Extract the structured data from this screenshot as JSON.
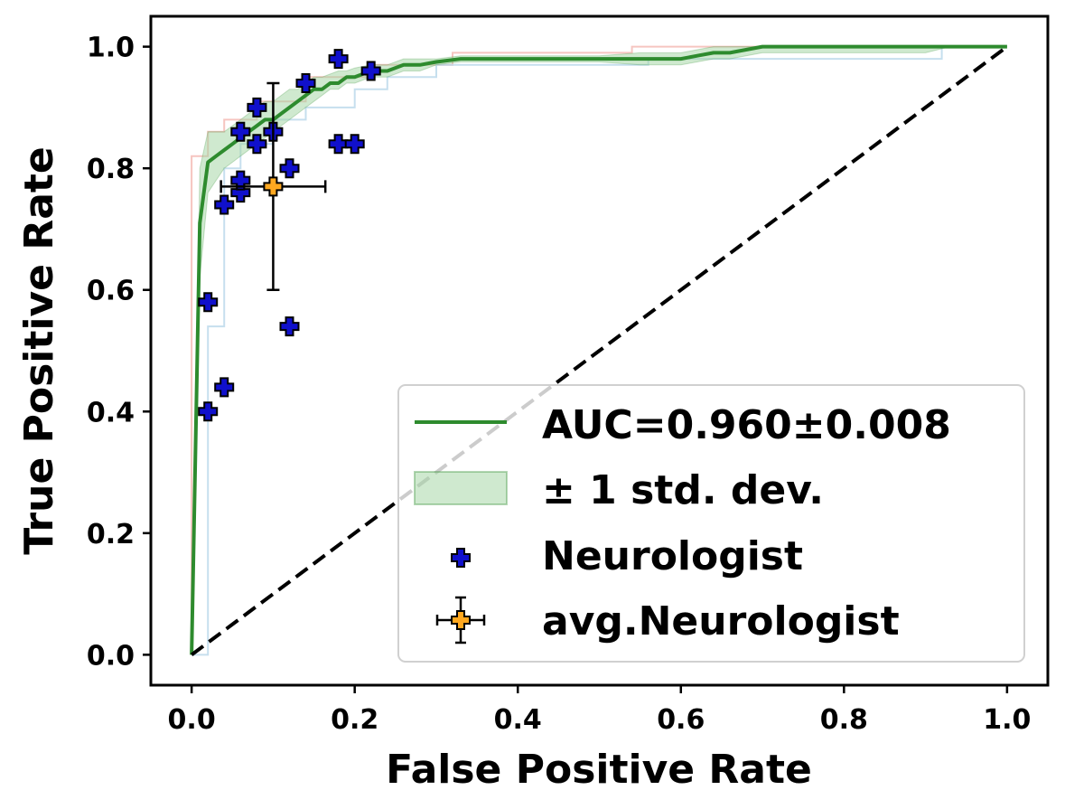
{
  "chart_data": {
    "type": "line",
    "title": "",
    "xlabel": "False Positive Rate",
    "ylabel": "True Positive Rate",
    "xlim": [
      -0.05,
      1.05
    ],
    "ylim": [
      -0.05,
      1.05
    ],
    "xticks": [
      "0.0",
      "0.2",
      "0.4",
      "0.6",
      "0.8",
      "1.0"
    ],
    "yticks": [
      "0.0",
      "0.2",
      "0.4",
      "0.6",
      "0.8",
      "1.0"
    ],
    "grid": false,
    "legend_position": "lower-right",
    "colors": {
      "mean_roc": "#2e8b2e",
      "std_band": "#9fd39f",
      "fold_a": "#f4b6b0",
      "fold_b": "#b8d7ea",
      "neurologist": "#1010cc",
      "avg_neurologist": "#ffa820",
      "chance": "#000000"
    },
    "mean_roc": {
      "name": "AUC=0.960±0.008",
      "x": [
        0.0,
        0.01,
        0.02,
        0.03,
        0.04,
        0.05,
        0.06,
        0.07,
        0.08,
        0.09,
        0.1,
        0.11,
        0.12,
        0.13,
        0.14,
        0.15,
        0.16,
        0.17,
        0.18,
        0.19,
        0.2,
        0.22,
        0.24,
        0.26,
        0.28,
        0.3,
        0.33,
        0.4,
        0.5,
        0.55,
        0.6,
        0.62,
        0.64,
        0.66,
        0.68,
        0.7,
        0.75,
        0.8,
        0.9,
        0.93,
        1.0
      ],
      "y": [
        0.0,
        0.71,
        0.81,
        0.82,
        0.83,
        0.84,
        0.85,
        0.86,
        0.87,
        0.88,
        0.88,
        0.89,
        0.9,
        0.91,
        0.92,
        0.93,
        0.93,
        0.94,
        0.94,
        0.95,
        0.95,
        0.96,
        0.96,
        0.97,
        0.97,
        0.975,
        0.98,
        0.98,
        0.98,
        0.98,
        0.98,
        0.985,
        0.99,
        0.99,
        0.995,
        1.0,
        1.0,
        1.0,
        1.0,
        1.0,
        1.0
      ],
      "std_lower": [
        0.0,
        0.62,
        0.76,
        0.78,
        0.8,
        0.81,
        0.82,
        0.83,
        0.84,
        0.85,
        0.86,
        0.87,
        0.88,
        0.89,
        0.9,
        0.91,
        0.92,
        0.93,
        0.93,
        0.94,
        0.94,
        0.95,
        0.95,
        0.96,
        0.96,
        0.97,
        0.975,
        0.975,
        0.975,
        0.97,
        0.97,
        0.975,
        0.98,
        0.98,
        0.985,
        0.99,
        0.99,
        0.99,
        0.99,
        1.0,
        1.0
      ],
      "std_upper": [
        0.0,
        0.8,
        0.86,
        0.86,
        0.86,
        0.87,
        0.88,
        0.89,
        0.9,
        0.91,
        0.91,
        0.92,
        0.93,
        0.93,
        0.94,
        0.95,
        0.95,
        0.955,
        0.96,
        0.96,
        0.965,
        0.97,
        0.97,
        0.98,
        0.98,
        0.98,
        0.985,
        0.985,
        0.985,
        0.99,
        0.99,
        0.995,
        1.0,
        1.0,
        1.0,
        1.0,
        1.0,
        1.0,
        1.0,
        1.0,
        1.0
      ]
    },
    "std_band_label": "± 1 std. dev.",
    "fold_curves": [
      {
        "x": [
          0.0,
          0.0,
          0.0,
          0.02,
          0.02,
          0.04,
          0.04,
          0.08,
          0.08,
          0.14,
          0.14,
          0.22,
          0.22,
          0.32,
          0.32,
          0.54,
          0.54,
          0.62,
          0.62,
          1.0
        ],
        "y": [
          0.0,
          0.0,
          0.82,
          0.82,
          0.86,
          0.86,
          0.88,
          0.88,
          0.91,
          0.91,
          0.95,
          0.95,
          0.97,
          0.97,
          0.99,
          0.99,
          1.0,
          1.0,
          1.0,
          1.0
        ]
      },
      {
        "x": [
          0.0,
          0.02,
          0.02,
          0.04,
          0.04,
          0.06,
          0.06,
          0.1,
          0.1,
          0.14,
          0.14,
          0.2,
          0.2,
          0.24,
          0.24,
          0.3,
          0.3,
          0.56,
          0.56,
          0.92,
          0.92,
          1.0
        ],
        "y": [
          0.0,
          0.0,
          0.54,
          0.54,
          0.8,
          0.8,
          0.84,
          0.84,
          0.88,
          0.88,
          0.9,
          0.9,
          0.93,
          0.93,
          0.95,
          0.95,
          0.97,
          0.97,
          0.98,
          0.98,
          1.0,
          1.0
        ]
      }
    ],
    "chance_line": {
      "x": [
        0.0,
        1.0
      ],
      "y": [
        0.0,
        1.0
      ]
    },
    "neurologist": {
      "name": "Neurologist",
      "points": [
        {
          "x": 0.02,
          "y": 0.4
        },
        {
          "x": 0.04,
          "y": 0.44
        },
        {
          "x": 0.02,
          "y": 0.58
        },
        {
          "x": 0.04,
          "y": 0.74
        },
        {
          "x": 0.06,
          "y": 0.76
        },
        {
          "x": 0.06,
          "y": 0.78
        },
        {
          "x": 0.06,
          "y": 0.86
        },
        {
          "x": 0.08,
          "y": 0.84
        },
        {
          "x": 0.08,
          "y": 0.9
        },
        {
          "x": 0.1,
          "y": 0.86
        },
        {
          "x": 0.12,
          "y": 0.8
        },
        {
          "x": 0.12,
          "y": 0.54
        },
        {
          "x": 0.14,
          "y": 0.94
        },
        {
          "x": 0.18,
          "y": 0.98
        },
        {
          "x": 0.18,
          "y": 0.84
        },
        {
          "x": 0.2,
          "y": 0.84
        },
        {
          "x": 0.22,
          "y": 0.96
        }
      ]
    },
    "avg_neurologist": {
      "name": "avg.Neurologist",
      "x": 0.1,
      "y": 0.77,
      "x_err": 0.064,
      "y_err": 0.17
    }
  }
}
